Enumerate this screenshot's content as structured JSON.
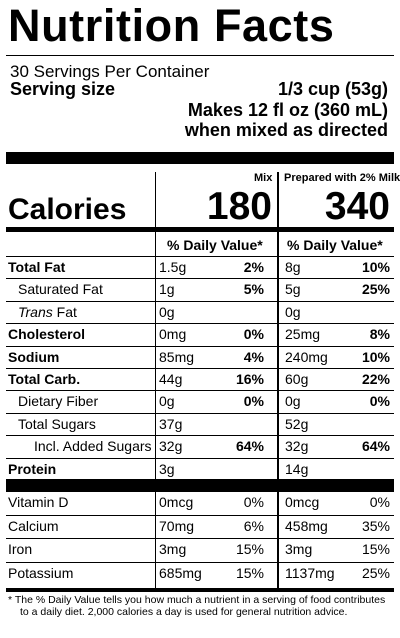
{
  "header": {
    "title": "Nutrition Facts",
    "servings_per_container": "30 Servings Per Container",
    "serving_size_label": "Serving size",
    "serving_size_value": "1/3 cup (53g)",
    "makes": "Makes 12 fl oz (360 mL)",
    "mixed": "when mixed as directed"
  },
  "columns": {
    "mix": "Mix",
    "prepared": "Prepared with 2% Milk"
  },
  "calories": {
    "label": "Calories",
    "mix": "180",
    "prepared": "340"
  },
  "daily_value_header": "% Daily Value*",
  "nutrients": [
    {
      "name": "Total Fat",
      "bold": true,
      "indent": 0,
      "mix_amt": "1.5g",
      "mix_dv": "2%",
      "prep_amt": "8g",
      "prep_dv": "10%"
    },
    {
      "name": "Saturated Fat",
      "bold": false,
      "indent": 1,
      "mix_amt": "1g",
      "mix_dv": "5%",
      "prep_amt": "5g",
      "prep_dv": "25%"
    },
    {
      "name": "Trans Fat",
      "bold": false,
      "indent": 1,
      "mix_amt": "0g",
      "mix_dv": "",
      "prep_amt": "0g",
      "prep_dv": ""
    },
    {
      "name": "Cholesterol",
      "bold": true,
      "indent": 0,
      "mix_amt": "0mg",
      "mix_dv": "0%",
      "prep_amt": "25mg",
      "prep_dv": "8%"
    },
    {
      "name": "Sodium",
      "bold": true,
      "indent": 0,
      "mix_amt": "85mg",
      "mix_dv": "4%",
      "prep_amt": "240mg",
      "prep_dv": "10%"
    },
    {
      "name": "Total Carb.",
      "bold": true,
      "indent": 0,
      "mix_amt": "44g",
      "mix_dv": "16%",
      "prep_amt": "60g",
      "prep_dv": "22%"
    },
    {
      "name": "Dietary Fiber",
      "bold": false,
      "indent": 1,
      "mix_amt": "0g",
      "mix_dv": "0%",
      "prep_amt": "0g",
      "prep_dv": "0%"
    },
    {
      "name": "Total Sugars",
      "bold": false,
      "indent": 1,
      "mix_amt": "37g",
      "mix_dv": "",
      "prep_amt": "52g",
      "prep_dv": ""
    },
    {
      "name": "Incl. Added Sugars",
      "bold": false,
      "indent": 2,
      "mix_amt": "32g",
      "mix_dv": "64%",
      "prep_amt": "32g",
      "prep_dv": "64%"
    },
    {
      "name": "Protein",
      "bold": true,
      "indent": 0,
      "mix_amt": "3g",
      "mix_dv": "",
      "prep_amt": "14g",
      "prep_dv": ""
    }
  ],
  "vitamins": [
    {
      "name": "Vitamin D",
      "mix_amt": "0mcg",
      "mix_dv": "0%",
      "prep_amt": "0mcg",
      "prep_dv": "0%"
    },
    {
      "name": "Calcium",
      "mix_amt": "70mg",
      "mix_dv": "6%",
      "prep_amt": "458mg",
      "prep_dv": "35%"
    },
    {
      "name": "Iron",
      "mix_amt": "3mg",
      "mix_dv": "15%",
      "prep_amt": "3mg",
      "prep_dv": "15%"
    },
    {
      "name": "Potassium",
      "mix_amt": "685mg",
      "mix_dv": "15%",
      "prep_amt": "1137mg",
      "prep_dv": "25%"
    }
  ],
  "footnote": "* The % Daily Value tells you how much a nutrient in a serving of food contributes to a daily diet. 2,000 calories a day is used for general nutrition advice."
}
